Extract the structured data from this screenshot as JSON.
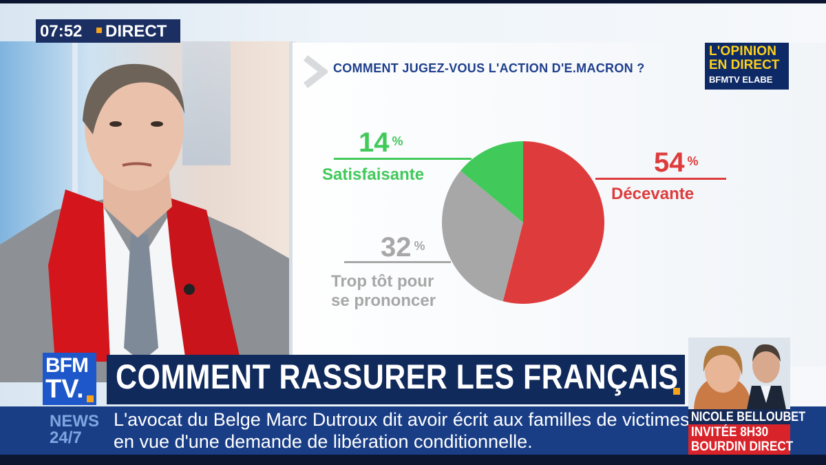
{
  "clock": {
    "time": "07:52",
    "status": "DIRECT"
  },
  "poll": {
    "question": "COMMENT JUGEZ-VOUS L'ACTION D'E.MACRON ?",
    "logo": {
      "line1": "L'OPINION",
      "line2": "EN DIRECT",
      "line3": "BFMTV ELABE"
    },
    "slices": [
      {
        "label": "Décevante",
        "value": 54,
        "display": "54",
        "unit": "%",
        "color": "#de3c3c"
      },
      {
        "label": "Trop tôt pour se prononcer",
        "value": 32,
        "display": "32",
        "unit": "%",
        "color": "#a7a7a7"
      },
      {
        "label": "Satisfaisante",
        "value": 14,
        "display": "14",
        "unit": "%",
        "color": "#41c95a"
      }
    ],
    "gray_label_line1": "Trop tôt pour",
    "gray_label_line2": "se prononcer"
  },
  "headline": {
    "logo_line1": "BFM",
    "logo_line2": "TV.",
    "text": "COMMENT RASSURER LES FRANÇAIS ?"
  },
  "ticker": {
    "label_line1": "NEWS",
    "label_line2": "24/7",
    "line1": "L'avocat du Belge Marc Dutroux dit avoir écrit aux familles de victimes",
    "line2": "en vue d'une demande de libération conditionnelle."
  },
  "guest": {
    "name": "NICOLE BELLOUBET",
    "invite": "INVITÉE 8H30",
    "show": "BOURDIN DIRECT"
  },
  "colors": {
    "navy": "#102a5c",
    "blue": "#1d57c9",
    "accent": "#f7a41b",
    "red": "#de3c3c",
    "green": "#41c95a",
    "gray": "#a7a7a7"
  }
}
